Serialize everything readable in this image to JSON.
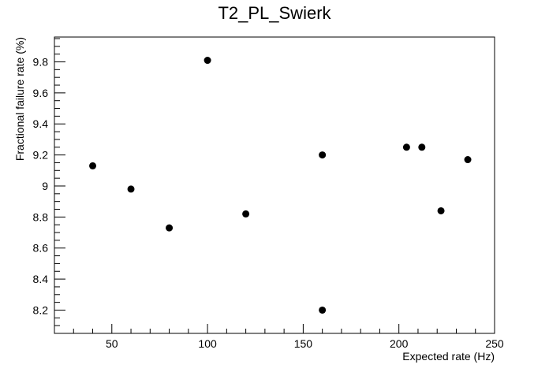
{
  "chart_data": {
    "type": "scatter",
    "title": "T2_PL_Swierk",
    "xlabel": "Expected rate (Hz)",
    "ylabel": "Fractional failure rate (%)",
    "xlim": [
      20,
      250
    ],
    "ylim": [
      8.05,
      9.96
    ],
    "x_ticks": [
      50,
      100,
      150,
      200,
      250
    ],
    "x_tick_labels": [
      "50",
      "100",
      "150",
      "200",
      "250"
    ],
    "y_ticks": [
      8.2,
      8.4,
      8.6,
      8.8,
      9.0,
      9.2,
      9.4,
      9.6,
      9.8
    ],
    "y_tick_labels": [
      "8.2",
      "8.4",
      "8.6",
      "8.8",
      "9",
      "9.2",
      "9.4",
      "9.6",
      "9.8"
    ],
    "grid": false,
    "points": [
      {
        "x": 40,
        "y": 9.13
      },
      {
        "x": 60,
        "y": 8.98
      },
      {
        "x": 80,
        "y": 8.73
      },
      {
        "x": 100,
        "y": 9.81
      },
      {
        "x": 120,
        "y": 8.82
      },
      {
        "x": 160,
        "y": 9.2
      },
      {
        "x": 160,
        "y": 8.2
      },
      {
        "x": 204,
        "y": 9.25
      },
      {
        "x": 212,
        "y": 9.25
      },
      {
        "x": 222,
        "y": 8.84
      },
      {
        "x": 236,
        "y": 9.17
      }
    ]
  }
}
